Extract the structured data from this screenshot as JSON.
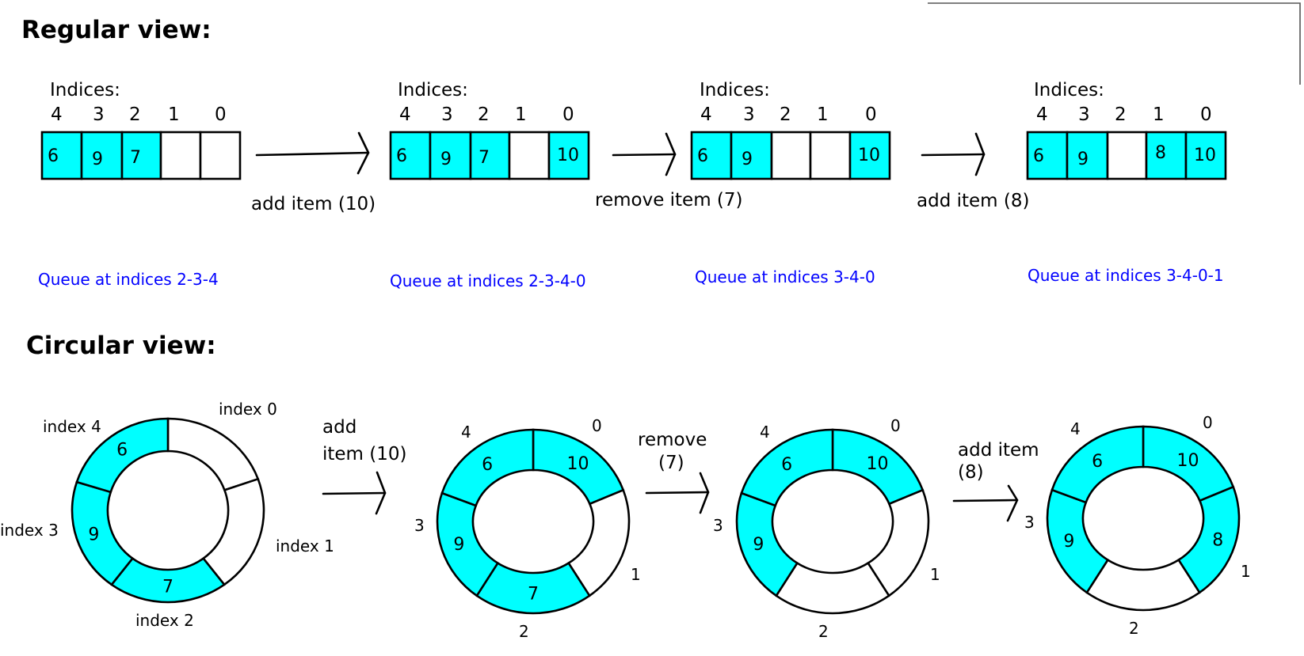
{
  "regular": {
    "heading": "Regular view:",
    "indices_label": "Indices:",
    "states": [
      {
        "index_labels": [
          "4",
          "3",
          "2",
          "1",
          "0"
        ],
        "cells": [
          {
            "v": "6",
            "f": true
          },
          {
            "v": "9",
            "f": true
          },
          {
            "v": "7",
            "f": true
          },
          {
            "v": "",
            "f": false
          },
          {
            "v": "",
            "f": false
          }
        ],
        "caption": "Queue at indices 2-3-4"
      },
      {
        "index_labels": [
          "4",
          "3",
          "2",
          "1",
          "0"
        ],
        "cells": [
          {
            "v": "6",
            "f": true
          },
          {
            "v": "9",
            "f": true
          },
          {
            "v": "7",
            "f": true
          },
          {
            "v": "",
            "f": false
          },
          {
            "v": "10",
            "f": true
          }
        ],
        "caption": "Queue at indices 2-3-4-0"
      },
      {
        "index_labels": [
          "4",
          "3",
          "2",
          "1",
          "0"
        ],
        "cells": [
          {
            "v": "6",
            "f": true
          },
          {
            "v": "9",
            "f": true
          },
          {
            "v": "",
            "f": false
          },
          {
            "v": "",
            "f": false
          },
          {
            "v": "10",
            "f": true
          }
        ],
        "caption": "Queue at indices 3-4-0"
      },
      {
        "index_labels": [
          "4",
          "3",
          "2",
          "1",
          "0"
        ],
        "cells": [
          {
            "v": "6",
            "f": true
          },
          {
            "v": "9",
            "f": true
          },
          {
            "v": "",
            "f": false
          },
          {
            "v": "8",
            "f": true
          },
          {
            "v": "10",
            "f": true
          }
        ],
        "caption": "Queue at indices 3-4-0-1"
      }
    ],
    "operations": [
      "add item (10)",
      "remove item (7)",
      "add item (8)"
    ]
  },
  "circular": {
    "heading": "Circular view:",
    "rings": [
      {
        "labels": [
          "index 0",
          "index 1",
          "index 2",
          "index 3",
          "index 4"
        ],
        "segments": [
          {
            "v": "",
            "f": false
          },
          {
            "v": "",
            "f": false
          },
          {
            "v": "7",
            "f": true
          },
          {
            "v": "9",
            "f": true
          },
          {
            "v": "6",
            "f": true
          }
        ]
      },
      {
        "labels": [
          "0",
          "1",
          "2",
          "3",
          "4"
        ],
        "segments": [
          {
            "v": "10",
            "f": true
          },
          {
            "v": "",
            "f": false
          },
          {
            "v": "7",
            "f": true
          },
          {
            "v": "9",
            "f": true
          },
          {
            "v": "6",
            "f": true
          }
        ]
      },
      {
        "labels": [
          "0",
          "1",
          "2",
          "3",
          "4"
        ],
        "segments": [
          {
            "v": "10",
            "f": true
          },
          {
            "v": "",
            "f": false
          },
          {
            "v": "",
            "f": false
          },
          {
            "v": "9",
            "f": true
          },
          {
            "v": "6",
            "f": true
          }
        ]
      },
      {
        "labels": [
          "0",
          "1",
          "2",
          "3",
          "4"
        ],
        "segments": [
          {
            "v": "10",
            "f": true
          },
          {
            "v": "8",
            "f": true
          },
          {
            "v": "",
            "f": false
          },
          {
            "v": "9",
            "f": true
          },
          {
            "v": "6",
            "f": true
          }
        ]
      }
    ],
    "operations": [
      [
        "add",
        "item (10)"
      ],
      [
        "remove",
        "(7)"
      ],
      [
        "add item",
        "(8)"
      ]
    ]
  },
  "colors": {
    "filled": "#00ffff",
    "empty": "#ffffff",
    "caption": "#0000ff"
  }
}
